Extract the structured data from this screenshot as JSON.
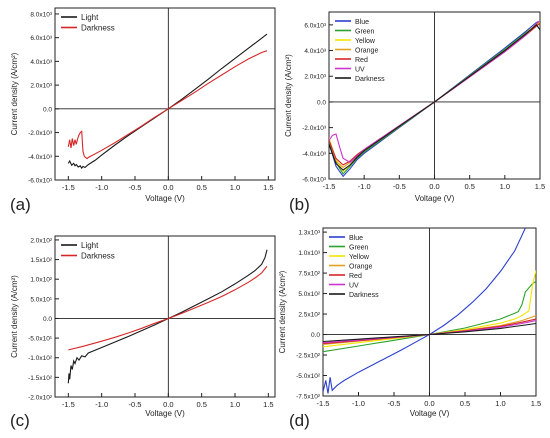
{
  "figure": {
    "panels": [
      "(a)",
      "(b)",
      "(c)",
      "(d)"
    ]
  },
  "chart_data": [
    {
      "panel": "(a)",
      "type": "line",
      "xlabel": "Voltage (V)",
      "ylabel": "Current density (A/cm²)",
      "xlim": [
        -1.7,
        1.6
      ],
      "ylim": [
        -6000,
        8500
      ],
      "xticks": [
        -1.5,
        -1.0,
        -0.5,
        0.0,
        0.5,
        1.0,
        1.5
      ],
      "xtick_labels": [
        "-1.5",
        "-1.0",
        "-0.5",
        "0.0",
        "0.5",
        "1.0",
        "1.5"
      ],
      "yticks": [
        -6000,
        -4000,
        -2000,
        0,
        2000,
        4000,
        6000,
        8000
      ],
      "ytick_labels": [
        "-6.0x10³",
        "-4.0x10³",
        "-2.0x10³",
        "0.0",
        "2.0x10³",
        "4.0x10³",
        "6.0x10³",
        "8.0x10³"
      ],
      "legend_position": "top-left",
      "series": [
        {
          "name": "Light",
          "color": "#1a1a1a",
          "x": [
            -1.5,
            -1.48,
            -1.45,
            -1.42,
            -1.4,
            -1.38,
            -1.35,
            -1.32,
            -1.3,
            -1.28,
            -1.25,
            -1.2,
            -1.1,
            -1.0,
            -0.8,
            -0.6,
            -0.4,
            -0.2,
            0.0,
            0.2,
            0.4,
            0.6,
            0.8,
            1.0,
            1.2,
            1.4,
            1.48
          ],
          "y": [
            -4600,
            -4400,
            -4750,
            -4600,
            -4800,
            -4700,
            -4900,
            -4800,
            -5000,
            -4850,
            -4950,
            -4700,
            -4350,
            -3900,
            -3050,
            -2250,
            -1500,
            -750,
            0,
            800,
            1650,
            2500,
            3400,
            4250,
            5100,
            5950,
            6300
          ]
        },
        {
          "name": "Darkness",
          "color": "#d62728",
          "x": [
            -1.5,
            -1.48,
            -1.46,
            -1.44,
            -1.42,
            -1.4,
            -1.38,
            -1.36,
            -1.34,
            -1.32,
            -1.3,
            -1.28,
            -1.26,
            -1.24,
            -1.22,
            -1.2,
            -1.0,
            -0.8,
            -0.6,
            -0.4,
            -0.2,
            0.0,
            0.2,
            0.4,
            0.6,
            0.8,
            1.0,
            1.2,
            1.4,
            1.48
          ],
          "y": [
            -3200,
            -2600,
            -3300,
            -2500,
            -3100,
            -2600,
            -3000,
            -2500,
            -2200,
            -2000,
            -1900,
            -3600,
            -4000,
            -4100,
            -4200,
            -4100,
            -3500,
            -2850,
            -2150,
            -1450,
            -700,
            0,
            700,
            1400,
            2150,
            2850,
            3550,
            4200,
            4750,
            4900
          ]
        }
      ]
    },
    {
      "panel": "(b)",
      "type": "line",
      "xlabel": "Voltage (V)",
      "ylabel": "Current density (A/cm²)",
      "xlim": [
        -1.5,
        1.5
      ],
      "ylim": [
        -6000,
        7000
      ],
      "xticks": [
        -1.5,
        -1.0,
        -0.5,
        0.0,
        0.5,
        1.0,
        1.5
      ],
      "xtick_labels": [
        "-1.5",
        "-1.0",
        "-0.5",
        "0.0",
        "0.5",
        "1.0",
        "1.5"
      ],
      "yticks": [
        -6000,
        -4000,
        -2000,
        0,
        2000,
        4000,
        6000
      ],
      "ytick_labels": [
        "-6.0x10³",
        "-4.0x10³",
        "-2.0x10³",
        "0.0",
        "2.0x10³",
        "4.0x10³",
        "6.0x10³"
      ],
      "legend_position": "top-left",
      "series": [
        {
          "name": "Blue",
          "color": "#2c3fd1",
          "x": [
            -1.5,
            -1.4,
            -1.3,
            -1.2,
            -1.1,
            -1.0,
            -0.5,
            0.0,
            0.5,
            1.0,
            1.3,
            1.45,
            1.5
          ],
          "y": [
            -3200,
            -5000,
            -5800,
            -5200,
            -4500,
            -4000,
            -2000,
            0,
            2100,
            4200,
            5500,
            6200,
            6300
          ]
        },
        {
          "name": "Green",
          "color": "#2ca02c",
          "x": [
            -1.5,
            -1.4,
            -1.3,
            -1.2,
            -1.1,
            -1.0,
            -0.5,
            0.0,
            0.5,
            1.0,
            1.3,
            1.45,
            1.5
          ],
          "y": [
            -3000,
            -4700,
            -5600,
            -5000,
            -4400,
            -3900,
            -1950,
            0,
            2050,
            4100,
            5400,
            6000,
            6200
          ]
        },
        {
          "name": "Yellow",
          "color": "#f2e600",
          "x": [
            -1.5,
            -1.4,
            -1.3,
            -1.2,
            -1.1,
            -1.0,
            -0.5,
            0.0,
            0.5,
            1.0,
            1.3,
            1.45,
            1.5
          ],
          "y": [
            -2800,
            -4500,
            -5400,
            -4900,
            -4300,
            -3800,
            -1900,
            0,
            2000,
            4000,
            5300,
            6100,
            6300
          ]
        },
        {
          "name": "Orange",
          "color": "#e0a020",
          "x": [
            -1.5,
            -1.4,
            -1.3,
            -1.2,
            -1.1,
            -1.0,
            -0.5,
            0.0,
            0.5,
            1.0,
            1.3,
            1.45,
            1.5
          ],
          "y": [
            -2900,
            -4600,
            -5100,
            -4700,
            -4200,
            -3750,
            -1880,
            0,
            1980,
            3950,
            5250,
            6000,
            6200
          ]
        },
        {
          "name": "Red",
          "color": "#d62728",
          "x": [
            -1.5,
            -1.4,
            -1.3,
            -1.2,
            -1.1,
            -1.0,
            -0.5,
            0.0,
            0.5,
            1.0,
            1.3,
            1.45,
            1.5
          ],
          "y": [
            -3000,
            -4400,
            -4900,
            -4600,
            -4100,
            -3700,
            -1850,
            0,
            1950,
            3900,
            5200,
            5900,
            6100
          ]
        },
        {
          "name": "UV",
          "color": "#cc33cc",
          "x": [
            -1.5,
            -1.45,
            -1.4,
            -1.35,
            -1.3,
            -1.2,
            -1.1,
            -1.0,
            -0.5,
            0.0,
            0.5,
            1.0,
            1.3,
            1.45,
            1.5
          ],
          "y": [
            -3000,
            -2600,
            -2500,
            -3500,
            -4400,
            -4700,
            -4200,
            -3700,
            -1850,
            0,
            1950,
            3900,
            5200,
            6100,
            6300
          ]
        },
        {
          "name": "Darkness",
          "color": "#1a1a1a",
          "x": [
            -1.5,
            -1.4,
            -1.3,
            -1.2,
            -1.1,
            -1.0,
            -0.5,
            0.0,
            0.5,
            1.0,
            1.3,
            1.45,
            1.5
          ],
          "y": [
            -3300,
            -4800,
            -5300,
            -4900,
            -4300,
            -3800,
            -1900,
            0,
            2000,
            4000,
            5300,
            6000,
            5600
          ]
        }
      ]
    },
    {
      "panel": "(c)",
      "type": "line",
      "xlabel": "Voltage (V)",
      "ylabel": "Current density (A/cm²)",
      "xlim": [
        -1.7,
        1.6
      ],
      "ylim": [
        -200,
        210
      ],
      "xticks": [
        -1.5,
        -1.0,
        -0.5,
        0.0,
        0.5,
        1.0,
        1.5
      ],
      "xtick_labels": [
        "-1.5",
        "-1.0",
        "-0.5",
        "0.0",
        "0.5",
        "1.0",
        "1.5"
      ],
      "yticks": [
        -200,
        -150,
        -100,
        -50,
        0,
        50,
        100,
        150,
        200
      ],
      "ytick_labels": [
        "-2.0x10²",
        "-1.5x10²",
        "-1.0x10²",
        "-5.0x10¹",
        "0.0",
        "5.0x10¹",
        "1.0x10²",
        "1.5x10²",
        "2.0x10²"
      ],
      "legend_position": "top-left",
      "series": [
        {
          "name": "Light",
          "color": "#1a1a1a",
          "x": [
            -1.5,
            -1.49,
            -1.48,
            -1.46,
            -1.44,
            -1.42,
            -1.4,
            -1.37,
            -1.34,
            -1.3,
            -1.25,
            -1.2,
            -1.0,
            -0.8,
            -0.6,
            -0.4,
            -0.2,
            0.0,
            0.2,
            0.4,
            0.6,
            0.8,
            1.0,
            1.2,
            1.3,
            1.4,
            1.45,
            1.48
          ],
          "y": [
            -165,
            -140,
            -155,
            -120,
            -130,
            -108,
            -115,
            -100,
            -106,
            -95,
            -98,
            -88,
            -74,
            -60,
            -46,
            -31,
            -16,
            0,
            16,
            33,
            50,
            68,
            88,
            110,
            122,
            138,
            155,
            175
          ]
        },
        {
          "name": "Darkness",
          "color": "#d62728",
          "x": [
            -1.5,
            -1.3,
            -1.0,
            -0.8,
            -0.6,
            -0.4,
            -0.2,
            0.0,
            0.2,
            0.4,
            0.6,
            0.8,
            1.0,
            1.2,
            1.3,
            1.4,
            1.48
          ],
          "y": [
            -80,
            -72,
            -58,
            -48,
            -37,
            -25,
            -12,
            0,
            13,
            27,
            41,
            56,
            73,
            92,
            103,
            116,
            133
          ]
        }
      ]
    },
    {
      "panel": "(d)",
      "type": "line",
      "xlabel": "Voltage (V)",
      "ylabel": "Current density (A/cm²)",
      "xlim": [
        -1.5,
        1.5
      ],
      "ylim": [
        -750,
        1300
      ],
      "xticks": [
        -1.5,
        -1.0,
        -0.5,
        0.0,
        0.5,
        1.0,
        1.5
      ],
      "xtick_labels": [
        "-1.5",
        "-1.0",
        "-0.5",
        "0.0",
        "0.5",
        "1.0",
        "1.5"
      ],
      "yticks": [
        -750,
        -500,
        -250,
        0,
        250,
        500,
        750,
        1000,
        1250
      ],
      "ytick_labels": [
        "-7.5x10²",
        "-5.0x10²",
        "-2.5x10²",
        "0.0",
        "2.5x10²",
        "5.0x10²",
        "7.5x10²",
        "1.0x10³",
        "1.3x10³"
      ],
      "legend_position": "top-left",
      "series": [
        {
          "name": "Blue",
          "color": "#2c3fd1",
          "x": [
            -1.5,
            -1.46,
            -1.43,
            -1.4,
            -1.37,
            -1.3,
            -1.2,
            -1.0,
            -0.8,
            -0.6,
            -0.4,
            -0.2,
            0.0,
            0.2,
            0.4,
            0.6,
            0.8,
            1.0,
            1.2,
            1.35
          ],
          "y": [
            -700,
            -560,
            -720,
            -520,
            -680,
            -620,
            -560,
            -460,
            -370,
            -280,
            -190,
            -95,
            0,
            110,
            240,
            390,
            560,
            770,
            1020,
            1300
          ]
        },
        {
          "name": "Green",
          "color": "#2ca02c",
          "x": [
            -1.5,
            -1.0,
            -0.5,
            0.0,
            0.5,
            1.0,
            1.2,
            1.25,
            1.3,
            1.35,
            1.4,
            1.45,
            1.5
          ],
          "y": [
            -210,
            -140,
            -70,
            0,
            80,
            190,
            260,
            280,
            360,
            520,
            570,
            620,
            650
          ]
        },
        {
          "name": "Yellow",
          "color": "#f2e600",
          "x": [
            -1.5,
            -1.0,
            -0.5,
            0.0,
            0.5,
            1.0,
            1.2,
            1.3,
            1.4,
            1.45,
            1.5
          ],
          "y": [
            -150,
            -100,
            -50,
            0,
            60,
            140,
            190,
            230,
            290,
            600,
            780
          ]
        },
        {
          "name": "Orange",
          "color": "#e0a020",
          "x": [
            -1.5,
            -1.0,
            -0.5,
            0.0,
            0.5,
            1.0,
            1.3,
            1.5
          ],
          "y": [
            -120,
            -80,
            -40,
            0,
            50,
            110,
            170,
            230
          ]
        },
        {
          "name": "Red",
          "color": "#d62728",
          "x": [
            -1.5,
            -1.0,
            -0.5,
            0.0,
            0.5,
            1.0,
            1.3,
            1.5
          ],
          "y": [
            -110,
            -75,
            -37,
            0,
            45,
            100,
            150,
            190
          ]
        },
        {
          "name": "UV",
          "color": "#cc33cc",
          "x": [
            -1.5,
            -1.0,
            -0.5,
            0.0,
            0.5,
            1.0,
            1.3,
            1.5
          ],
          "y": [
            -100,
            -68,
            -34,
            0,
            40,
            90,
            135,
            170
          ]
        },
        {
          "name": "Darkness",
          "color": "#1a1a1a",
          "x": [
            -1.5,
            -1.0,
            -0.5,
            0.0,
            0.5,
            1.0,
            1.3,
            1.5
          ],
          "y": [
            -85,
            -57,
            -28,
            0,
            33,
            75,
            110,
            135
          ]
        }
      ]
    }
  ]
}
